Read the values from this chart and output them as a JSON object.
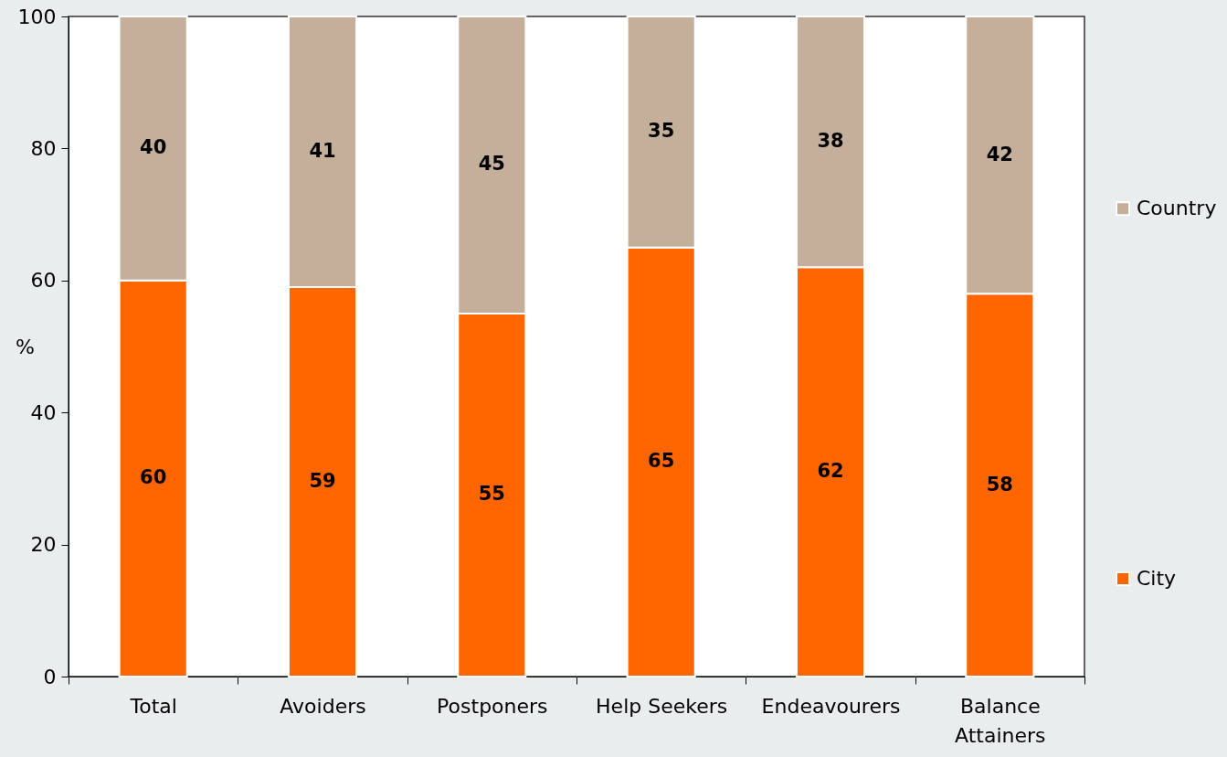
{
  "chart_data": {
    "type": "bar",
    "stacked": true,
    "categories": [
      "Total",
      "Avoiders",
      "Postponers",
      "Help Seekers",
      "Endeavourers",
      "Balance Attainers"
    ],
    "series": [
      {
        "name": "City",
        "color": "#ff6600",
        "values": [
          60,
          59,
          55,
          65,
          62,
          58
        ]
      },
      {
        "name": "Country",
        "color": "#c4af9b",
        "values": [
          40,
          41,
          45,
          35,
          38,
          42
        ]
      }
    ],
    "ylabel": "%",
    "ylim": [
      0,
      100
    ],
    "yticks": [
      0,
      20,
      40,
      60,
      80,
      100
    ],
    "data_labels": true,
    "legend": "right",
    "grid": false
  }
}
